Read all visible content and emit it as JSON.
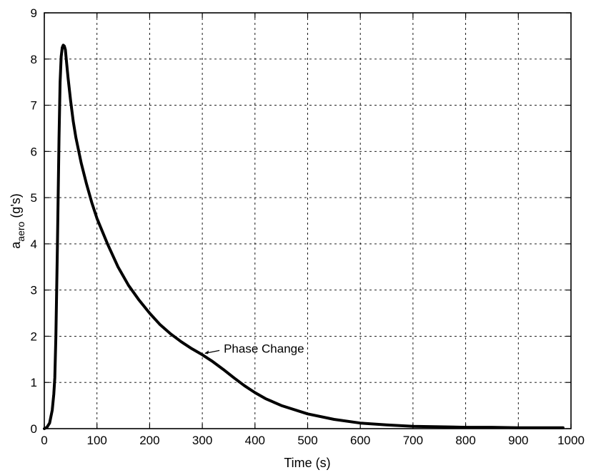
{
  "chart_data": {
    "type": "line",
    "title": "",
    "xlabel": "Time (s)",
    "ylabel": {
      "base": "a",
      "subscript": "aero",
      "suffix": " (g's)"
    },
    "xlim": [
      0,
      1000
    ],
    "ylim": [
      0,
      9
    ],
    "xticks": [
      0,
      100,
      200,
      300,
      400,
      500,
      600,
      700,
      800,
      900,
      1000
    ],
    "xtick_labels": [
      "0",
      "100",
      "200",
      "300",
      "400",
      "500",
      "600",
      "700",
      "800",
      "900",
      "1000"
    ],
    "yticks": [
      0,
      1,
      2,
      3,
      4,
      5,
      6,
      7,
      8,
      9
    ],
    "ytick_labels": [
      "0",
      "1",
      "2",
      "3",
      "4",
      "5",
      "6",
      "7",
      "8",
      "9"
    ],
    "grid": true,
    "legend": "none",
    "series": [
      {
        "x": [
          0,
          5,
          10,
          15,
          18,
          20,
          22,
          25,
          28,
          30,
          32,
          34,
          36,
          38,
          40,
          42,
          45,
          50,
          55,
          60,
          70,
          80,
          90,
          100,
          120,
          140,
          160,
          180,
          200,
          220,
          240,
          260,
          280,
          300,
          320,
          340,
          360,
          380,
          400,
          420,
          450,
          500,
          550,
          600,
          650,
          700,
          750,
          800,
          850,
          900,
          950,
          985
        ],
        "y": [
          0,
          0.03,
          0.12,
          0.4,
          0.75,
          1.1,
          2.0,
          4.0,
          6.3,
          7.5,
          8.05,
          8.25,
          8.3,
          8.28,
          8.2,
          7.95,
          7.6,
          7.1,
          6.65,
          6.3,
          5.75,
          5.3,
          4.9,
          4.55,
          4.0,
          3.5,
          3.1,
          2.78,
          2.5,
          2.25,
          2.05,
          1.88,
          1.73,
          1.6,
          1.45,
          1.28,
          1.1,
          0.93,
          0.78,
          0.65,
          0.5,
          0.32,
          0.2,
          0.12,
          0.08,
          0.05,
          0.04,
          0.03,
          0.03,
          0.02,
          0.02,
          0.02
        ]
      }
    ],
    "annotations": [
      {
        "text": "Phase Change",
        "x": 300,
        "y": 1.6
      }
    ]
  }
}
